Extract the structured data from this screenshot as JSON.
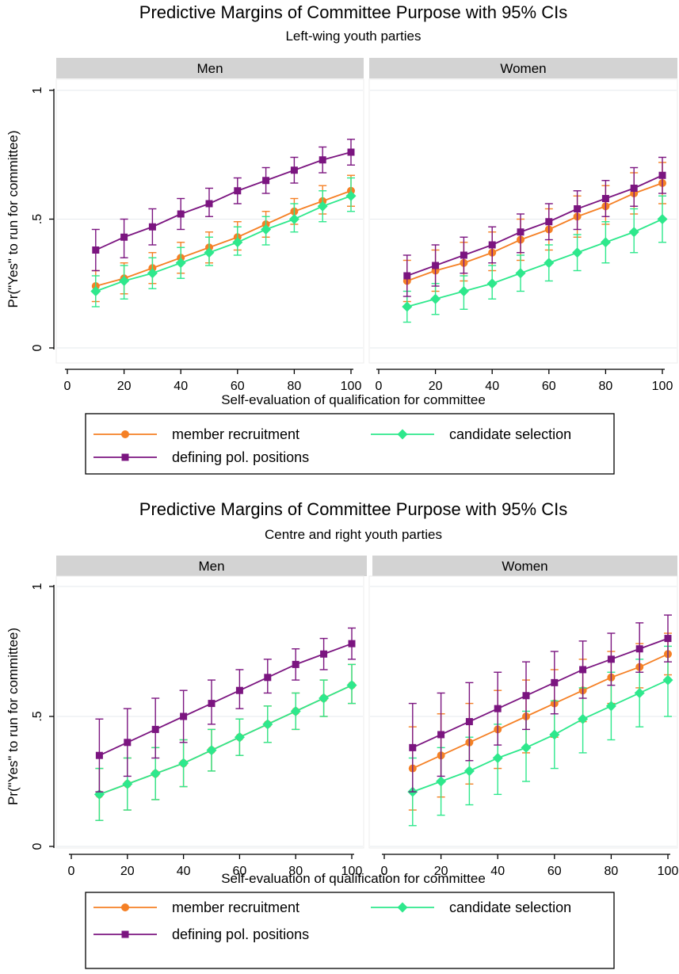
{
  "chart_data": [
    {
      "type": "line",
      "title": "Predictive Margins of Committee Purpose with 95% CIs",
      "subtitle": "Left-wing youth parties",
      "xlabel": "Self-evaluation of qualification for committee",
      "ylabel": "Pr(\"Yes\" to run for committee)",
      "xlim": [
        0,
        100
      ],
      "ylim": [
        0,
        1
      ],
      "x_ticks": [
        "0",
        "20",
        "40",
        "60",
        "80",
        "100"
      ],
      "y_ticks": [
        "0",
        ".5",
        "1"
      ],
      "grid": "horizontal",
      "legend_position": "bottom",
      "x": [
        10,
        20,
        30,
        40,
        50,
        60,
        70,
        80,
        90,
        100
      ],
      "panels": [
        {
          "name": "Men",
          "series": [
            {
              "name": "member recruitment",
              "values": [
                0.24,
                0.27,
                0.31,
                0.35,
                0.39,
                0.43,
                0.48,
                0.53,
                0.57,
                0.61
              ],
              "lower": [
                0.18,
                0.21,
                0.25,
                0.29,
                0.33,
                0.38,
                0.43,
                0.48,
                0.52,
                0.55
              ],
              "upper": [
                0.3,
                0.33,
                0.37,
                0.41,
                0.45,
                0.49,
                0.53,
                0.58,
                0.63,
                0.67
              ]
            },
            {
              "name": "candidate selection",
              "values": [
                0.22,
                0.26,
                0.29,
                0.33,
                0.37,
                0.41,
                0.46,
                0.5,
                0.55,
                0.59
              ],
              "lower": [
                0.16,
                0.19,
                0.23,
                0.27,
                0.32,
                0.36,
                0.4,
                0.45,
                0.49,
                0.53
              ],
              "upper": [
                0.28,
                0.32,
                0.35,
                0.39,
                0.43,
                0.47,
                0.51,
                0.56,
                0.61,
                0.66
              ]
            },
            {
              "name": "defining pol. positions",
              "values": [
                0.38,
                0.43,
                0.47,
                0.52,
                0.56,
                0.61,
                0.65,
                0.69,
                0.73,
                0.76
              ],
              "lower": [
                0.3,
                0.35,
                0.4,
                0.46,
                0.51,
                0.56,
                0.6,
                0.64,
                0.68,
                0.71
              ],
              "upper": [
                0.46,
                0.5,
                0.54,
                0.58,
                0.62,
                0.66,
                0.7,
                0.74,
                0.78,
                0.81
              ]
            }
          ]
        },
        {
          "name": "Women",
          "series": [
            {
              "name": "member recruitment",
              "values": [
                0.26,
                0.3,
                0.33,
                0.37,
                0.42,
                0.46,
                0.51,
                0.55,
                0.6,
                0.64
              ],
              "lower": [
                0.18,
                0.22,
                0.26,
                0.3,
                0.34,
                0.38,
                0.43,
                0.48,
                0.52,
                0.56
              ],
              "upper": [
                0.34,
                0.38,
                0.41,
                0.45,
                0.5,
                0.54,
                0.59,
                0.63,
                0.68,
                0.72
              ]
            },
            {
              "name": "candidate selection",
              "values": [
                0.16,
                0.19,
                0.22,
                0.25,
                0.29,
                0.33,
                0.37,
                0.41,
                0.45,
                0.5
              ],
              "lower": [
                0.1,
                0.13,
                0.15,
                0.19,
                0.22,
                0.26,
                0.3,
                0.33,
                0.37,
                0.41
              ],
              "upper": [
                0.22,
                0.25,
                0.28,
                0.32,
                0.36,
                0.4,
                0.44,
                0.49,
                0.54,
                0.59
              ]
            },
            {
              "name": "defining pol. positions",
              "values": [
                0.28,
                0.32,
                0.36,
                0.4,
                0.45,
                0.49,
                0.54,
                0.58,
                0.62,
                0.67
              ],
              "lower": [
                0.2,
                0.24,
                0.29,
                0.33,
                0.37,
                0.42,
                0.46,
                0.51,
                0.55,
                0.6
              ],
              "upper": [
                0.36,
                0.4,
                0.43,
                0.47,
                0.52,
                0.56,
                0.61,
                0.65,
                0.7,
                0.74
              ]
            }
          ]
        }
      ]
    },
    {
      "type": "line",
      "title": "Predictive Margins of Committee Purpose with 95% CIs",
      "subtitle": "Centre and right youth parties",
      "xlabel": "Self-evaluation of qualification for committee",
      "ylabel": "Pr(\"Yes\" to run for committee)",
      "xlim": [
        0,
        100
      ],
      "ylim": [
        0,
        1
      ],
      "x_ticks": [
        "0",
        "20",
        "40",
        "60",
        "80",
        "100"
      ],
      "y_ticks": [
        "0",
        ".5",
        "1"
      ],
      "grid": "horizontal",
      "legend_position": "bottom",
      "x": [
        10,
        20,
        30,
        40,
        50,
        60,
        70,
        80,
        90,
        100
      ],
      "panels": [
        {
          "name": "Men",
          "series": [
            {
              "name": "member recruitment",
              "values": [
                0.2,
                0.24,
                0.28,
                0.32,
                0.37,
                0.42,
                0.47,
                0.52,
                0.57,
                0.62
              ],
              "lower": [
                0.1,
                0.14,
                0.18,
                0.23,
                0.29,
                0.35,
                0.4,
                0.45,
                0.5,
                0.55
              ],
              "upper": [
                0.3,
                0.34,
                0.38,
                0.41,
                0.45,
                0.49,
                0.54,
                0.59,
                0.64,
                0.7
              ]
            },
            {
              "name": "candidate selection",
              "values": [
                0.2,
                0.24,
                0.28,
                0.32,
                0.37,
                0.42,
                0.47,
                0.52,
                0.57,
                0.62
              ],
              "lower": [
                0.1,
                0.14,
                0.18,
                0.23,
                0.29,
                0.35,
                0.4,
                0.45,
                0.5,
                0.55
              ],
              "upper": [
                0.3,
                0.34,
                0.38,
                0.41,
                0.45,
                0.49,
                0.54,
                0.59,
                0.64,
                0.7
              ]
            },
            {
              "name": "defining pol. positions",
              "values": [
                0.35,
                0.4,
                0.45,
                0.5,
                0.55,
                0.6,
                0.65,
                0.7,
                0.74,
                0.78
              ],
              "lower": [
                0.21,
                0.27,
                0.34,
                0.4,
                0.47,
                0.53,
                0.59,
                0.64,
                0.68,
                0.72
              ],
              "upper": [
                0.49,
                0.53,
                0.57,
                0.6,
                0.64,
                0.68,
                0.72,
                0.76,
                0.8,
                0.84
              ]
            }
          ]
        },
        {
          "name": "Women",
          "series": [
            {
              "name": "member recruitment",
              "values": [
                0.3,
                0.35,
                0.4,
                0.45,
                0.5,
                0.55,
                0.6,
                0.65,
                0.69,
                0.74
              ],
              "lower": [
                0.14,
                0.19,
                0.24,
                0.3,
                0.36,
                0.42,
                0.48,
                0.55,
                0.61,
                0.66
              ],
              "upper": [
                0.46,
                0.51,
                0.55,
                0.6,
                0.64,
                0.68,
                0.72,
                0.75,
                0.78,
                0.82
              ]
            },
            {
              "name": "candidate selection",
              "values": [
                0.21,
                0.25,
                0.29,
                0.34,
                0.38,
                0.43,
                0.49,
                0.54,
                0.59,
                0.64
              ],
              "lower": [
                0.08,
                0.12,
                0.16,
                0.2,
                0.25,
                0.3,
                0.36,
                0.41,
                0.46,
                0.5
              ],
              "upper": [
                0.34,
                0.38,
                0.42,
                0.47,
                0.52,
                0.56,
                0.61,
                0.67,
                0.72,
                0.77
              ]
            },
            {
              "name": "defining pol. positions",
              "values": [
                0.38,
                0.43,
                0.48,
                0.53,
                0.58,
                0.63,
                0.68,
                0.72,
                0.76,
                0.8
              ],
              "lower": [
                0.21,
                0.27,
                0.33,
                0.39,
                0.45,
                0.51,
                0.57,
                0.62,
                0.67,
                0.71
              ],
              "upper": [
                0.55,
                0.59,
                0.63,
                0.67,
                0.71,
                0.75,
                0.79,
                0.82,
                0.86,
                0.89
              ]
            }
          ]
        }
      ]
    }
  ],
  "legend": [
    {
      "label": "member recruitment",
      "color": "#f58025",
      "marker": "circle"
    },
    {
      "label": "candidate selection",
      "color": "#2ee88c",
      "marker": "diamond"
    },
    {
      "label": "defining pol. positions",
      "color": "#7b1580",
      "marker": "square"
    }
  ],
  "colors": {
    "panel_header_bg": "#d3d3d3",
    "grid": "#e6eaee",
    "frame": "#000000"
  }
}
